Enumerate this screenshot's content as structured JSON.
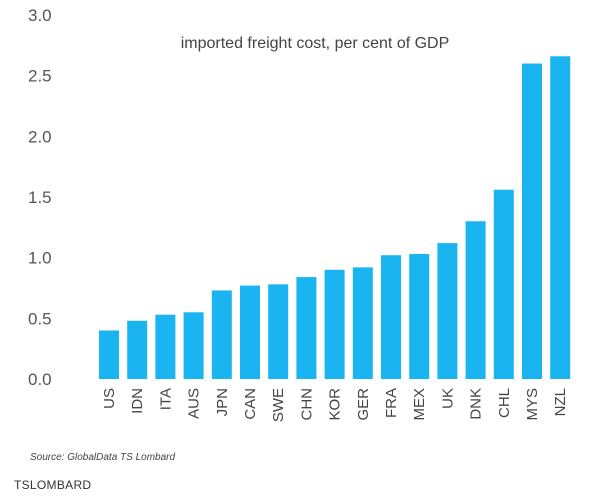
{
  "chart_data": {
    "type": "bar",
    "title": "imported freight cost, per cent of GDP",
    "categories": [
      "US",
      "IDN",
      "ITA",
      "AUS",
      "JPN",
      "CAN",
      "SWE",
      "CHN",
      "KOR",
      "GER",
      "FRA",
      "MEX",
      "UK",
      "DNK",
      "CHL",
      "MYS",
      "NZL"
    ],
    "values": [
      0.4,
      0.48,
      0.53,
      0.55,
      0.73,
      0.77,
      0.78,
      0.84,
      0.9,
      0.92,
      1.02,
      1.03,
      1.12,
      1.3,
      1.56,
      2.6,
      2.66
    ],
    "yticks": [
      "0.0",
      "0.5",
      "1.0",
      "1.5",
      "2.0",
      "2.5",
      "3.0"
    ],
    "ylim": [
      0,
      3.0
    ],
    "bar_color": "#1ab5f0",
    "grid": false,
    "legend": false
  },
  "source": "Source: GlobalData TS Lombard",
  "brand": "TSLOMBARD"
}
